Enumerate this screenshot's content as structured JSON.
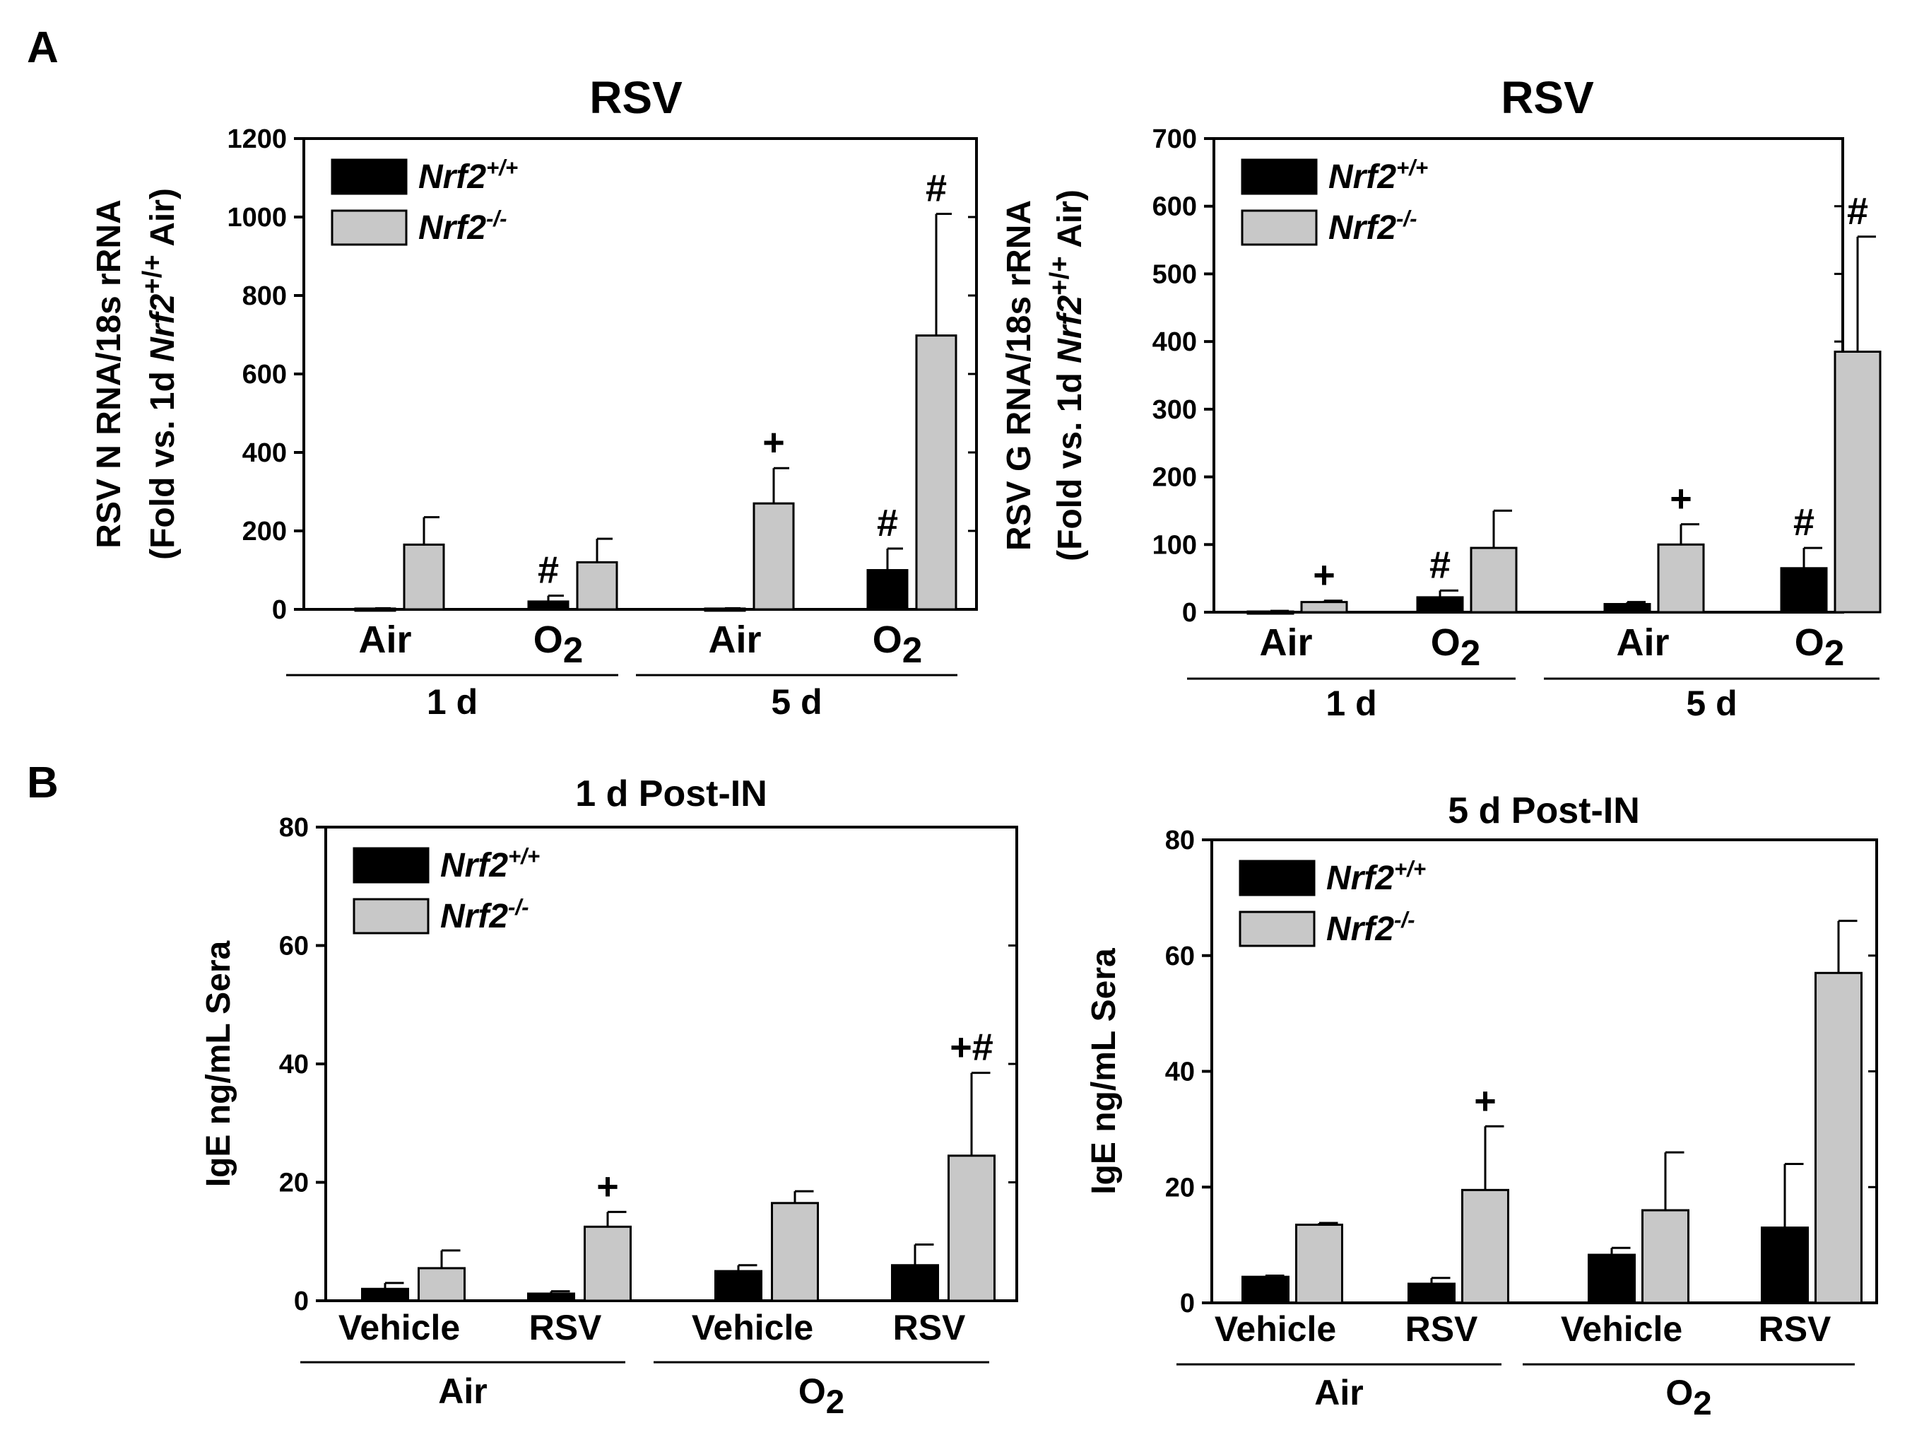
{
  "panels": [
    {
      "id": "A",
      "label": "A"
    },
    {
      "id": "B",
      "label": "B"
    }
  ],
  "legend": {
    "wt": {
      "label": "Nrf2",
      "sup": "+/+",
      "color": "#000000"
    },
    "ko": {
      "label": "Nrf2",
      "sup": "-/-",
      "color": "#c8c8c8"
    }
  },
  "chart_data": [
    {
      "type": "bar",
      "panel": "A",
      "title": "RSV",
      "ylabel_line1": "RSV N RNA/18s rRNA",
      "ylabel_line2": {
        "pre": "(Fold vs. 1d ",
        "italic": "Nrf2",
        "sup": "+/+",
        "post": " Air)"
      },
      "ylim": [
        0,
        1200
      ],
      "yticks": [
        0,
        200,
        400,
        600,
        800,
        1000,
        1200
      ],
      "categories": [
        "Air",
        "O2",
        "Air",
        "O2"
      ],
      "groups": [
        {
          "label": "1 d",
          "span": [
            0,
            1
          ]
        },
        {
          "label": "5 d",
          "span": [
            2,
            3
          ]
        }
      ],
      "series": [
        {
          "name": "Nrf2+/+",
          "values": [
            2,
            20,
            2,
            100
          ],
          "errors": [
            1,
            15,
            1,
            55
          ]
        },
        {
          "name": "Nrf2-/-",
          "values": [
            165,
            120,
            270,
            698
          ],
          "errors": [
            70,
            60,
            90,
            310
          ]
        }
      ],
      "annotations": [
        {
          "category": 1,
          "series": 0,
          "text": "#"
        },
        {
          "category": 2,
          "series": 1,
          "text": "+"
        },
        {
          "category": 3,
          "series": 0,
          "text": "#"
        },
        {
          "category": 3,
          "series": 1,
          "text": "#"
        }
      ]
    },
    {
      "type": "bar",
      "panel": "A",
      "title": "RSV",
      "ylabel_line1": "RSV G RNA/18s rRNA",
      "ylabel_line2": {
        "pre": "(Fold vs. 1d ",
        "italic": "Nrf2",
        "sup": "+/+",
        "post": " Air)"
      },
      "ylim": [
        0,
        700
      ],
      "yticks": [
        0,
        100,
        200,
        300,
        400,
        500,
        600,
        700
      ],
      "categories": [
        "Air",
        "O2",
        "Air",
        "O2"
      ],
      "groups": [
        {
          "label": "1 d",
          "span": [
            0,
            1
          ]
        },
        {
          "label": "5 d",
          "span": [
            2,
            3
          ]
        }
      ],
      "series": [
        {
          "name": "Nrf2+/+",
          "values": [
            1,
            22,
            12,
            65
          ],
          "errors": [
            1,
            10,
            3,
            30
          ]
        },
        {
          "name": "Nrf2-/-",
          "values": [
            15,
            95,
            100,
            385
          ],
          "errors": [
            2,
            55,
            30,
            170
          ]
        }
      ],
      "annotations": [
        {
          "category": 0,
          "series": 1,
          "text": "+"
        },
        {
          "category": 1,
          "series": 0,
          "text": "#"
        },
        {
          "category": 2,
          "series": 1,
          "text": "+"
        },
        {
          "category": 3,
          "series": 0,
          "text": "#"
        },
        {
          "category": 3,
          "series": 1,
          "text": "#"
        }
      ]
    },
    {
      "type": "bar",
      "panel": "B",
      "title": "1 d Post-IN",
      "ylabel_line1": "IgE ng/mL Sera",
      "ylim": [
        0,
        80
      ],
      "yticks": [
        0,
        20,
        40,
        60,
        80
      ],
      "categories": [
        "Vehicle",
        "RSV",
        "Vehicle",
        "RSV"
      ],
      "groups": [
        {
          "label": "Air",
          "span": [
            0,
            1
          ]
        },
        {
          "label": "O2",
          "span": [
            2,
            3
          ]
        }
      ],
      "series": [
        {
          "name": "Nrf2+/+",
          "values": [
            2,
            1.2,
            5,
            6
          ],
          "errors": [
            1,
            0.4,
            1,
            3.5
          ]
        },
        {
          "name": "Nrf2-/-",
          "values": [
            5.5,
            12.5,
            16.5,
            24.5
          ],
          "errors": [
            3,
            2.5,
            2,
            14
          ]
        }
      ],
      "annotations": [
        {
          "category": 1,
          "series": 1,
          "text": "+"
        },
        {
          "category": 3,
          "series": 1,
          "text": "+#"
        }
      ]
    },
    {
      "type": "bar",
      "panel": "B",
      "title": "5 d Post-IN",
      "ylabel_line1": "IgE ng/mL Sera",
      "ylim": [
        0,
        80
      ],
      "yticks": [
        0,
        20,
        40,
        60,
        80
      ],
      "categories": [
        "Vehicle",
        "RSV",
        "Vehicle",
        "RSV"
      ],
      "groups": [
        {
          "label": "Air",
          "span": [
            0,
            1
          ]
        },
        {
          "label": "O2",
          "span": [
            2,
            3
          ]
        }
      ],
      "series": [
        {
          "name": "Nrf2+/+",
          "values": [
            4.5,
            3.3,
            8.3,
            13
          ],
          "errors": [
            0.2,
            1,
            1.2,
            11
          ]
        },
        {
          "name": "Nrf2-/-",
          "values": [
            13.5,
            19.5,
            16,
            57
          ],
          "errors": [
            0.3,
            11,
            10,
            9
          ]
        }
      ],
      "annotations": [
        {
          "category": 1,
          "series": 1,
          "text": "+"
        }
      ]
    }
  ]
}
